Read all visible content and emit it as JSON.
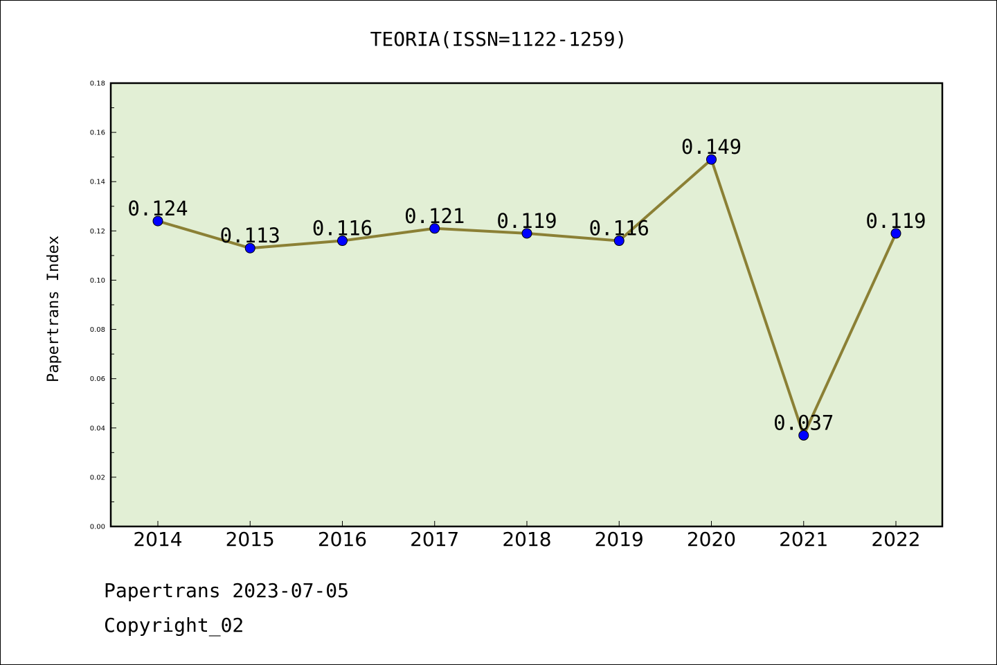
{
  "chart_data": {
    "type": "line",
    "title": "TEORIA(ISSN=1122-1259)",
    "xlabel": "",
    "ylabel": "Papertrans Index",
    "categories": [
      "2014",
      "2015",
      "2016",
      "2017",
      "2018",
      "2019",
      "2020",
      "2021",
      "2022"
    ],
    "values": [
      0.124,
      0.113,
      0.116,
      0.121,
      0.119,
      0.116,
      0.149,
      0.037,
      0.119
    ],
    "data_labels": [
      "0.124",
      "0.113",
      "0.116",
      "0.121",
      "0.119",
      "0.116",
      "0.149",
      "0.037",
      "0.119"
    ],
    "ylim": [
      0,
      0.18
    ],
    "yticks": [
      "0.00",
      "0.02",
      "0.04",
      "0.06",
      "0.08",
      "0.10",
      "0.12",
      "0.14",
      "0.16",
      "0.18"
    ],
    "grid": false,
    "colors": {
      "plot_background": "#e2efd5",
      "line": "#8b8035",
      "marker": "#0000ff"
    }
  },
  "footer": {
    "line1": "Papertrans 2023-07-05",
    "line2": "Copyright_02"
  }
}
